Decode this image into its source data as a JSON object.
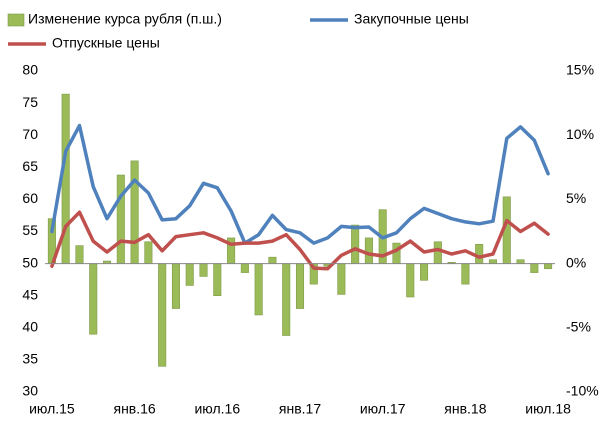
{
  "chart_data": {
    "type": "bar_line",
    "categories": [
      "июл.15",
      null,
      null,
      null,
      null,
      null,
      "янв.16",
      null,
      null,
      null,
      null,
      null,
      "июл.16",
      null,
      null,
      null,
      null,
      null,
      "янв.17",
      null,
      null,
      null,
      null,
      null,
      "июл.17",
      null,
      null,
      null,
      null,
      null,
      "янв.18",
      null,
      null,
      null,
      null,
      null,
      "июл.18"
    ],
    "series": [
      {
        "name": "Изменение курса рубля (п.ш.)",
        "type": "bar",
        "axis": "y2",
        "color": "#9bbb59",
        "values": [
          3.5,
          13.2,
          1.4,
          -5.5,
          0.2,
          6.9,
          8,
          1.7,
          -8,
          -3.5,
          -1.7,
          -1,
          -2.5,
          2,
          -0.7,
          -4,
          0.5,
          -5.6,
          -3.5,
          -1.6,
          -0.2,
          -2.4,
          3,
          2,
          4.2,
          1.6,
          -2.6,
          -1.3,
          1.7,
          0.1,
          -1.6,
          1.5,
          0.3,
          5.2,
          0.3,
          -0.7,
          -0.4
        ]
      },
      {
        "name": "Закупочные цены",
        "type": "line",
        "color": "#4f81bd",
        "values": [
          55,
          67.5,
          71.5,
          62,
          57,
          60.5,
          63,
          61,
          56.8,
          57,
          59,
          62.5,
          61.8,
          58.2,
          53.2,
          54.5,
          57.5,
          55.3,
          54.8,
          53.2,
          54,
          55.8,
          55.6,
          55.7,
          54,
          54.8,
          57,
          58.6,
          57.8,
          57,
          56.5,
          56.2,
          56.6,
          69.5,
          71.3,
          69.2,
          64
        ]
      },
      {
        "name": "Отпускные цены",
        "type": "line",
        "color": "#c0504d",
        "values": [
          49.6,
          55.8,
          58,
          53.5,
          51.8,
          53.5,
          53.3,
          54.5,
          52,
          54.2,
          54.5,
          54.8,
          54,
          53,
          53.2,
          53.2,
          53.5,
          54.5,
          52.2,
          49.3,
          49.2,
          51.3,
          52.3,
          51.5,
          51.2,
          52.1,
          53.5,
          51.8,
          52.2,
          51.5,
          52,
          51,
          51.5,
          56.7,
          55,
          56.3,
          54.6
        ]
      }
    ],
    "ylim": [
      30,
      80
    ],
    "yticks": [
      30,
      35,
      40,
      45,
      50,
      55,
      60,
      65,
      70,
      75,
      80
    ],
    "y2lim": [
      -10,
      15
    ],
    "y2ticks": [
      {
        "value": -10,
        "label": "-10%"
      },
      {
        "value": -5,
        "label": "-5%"
      },
      {
        "value": 0,
        "label": "0%"
      },
      {
        "value": 5,
        "label": "5%"
      },
      {
        "value": 10,
        "label": "10%"
      },
      {
        "value": 15,
        "label": "15%"
      }
    ],
    "grid": false,
    "legend": "top"
  }
}
